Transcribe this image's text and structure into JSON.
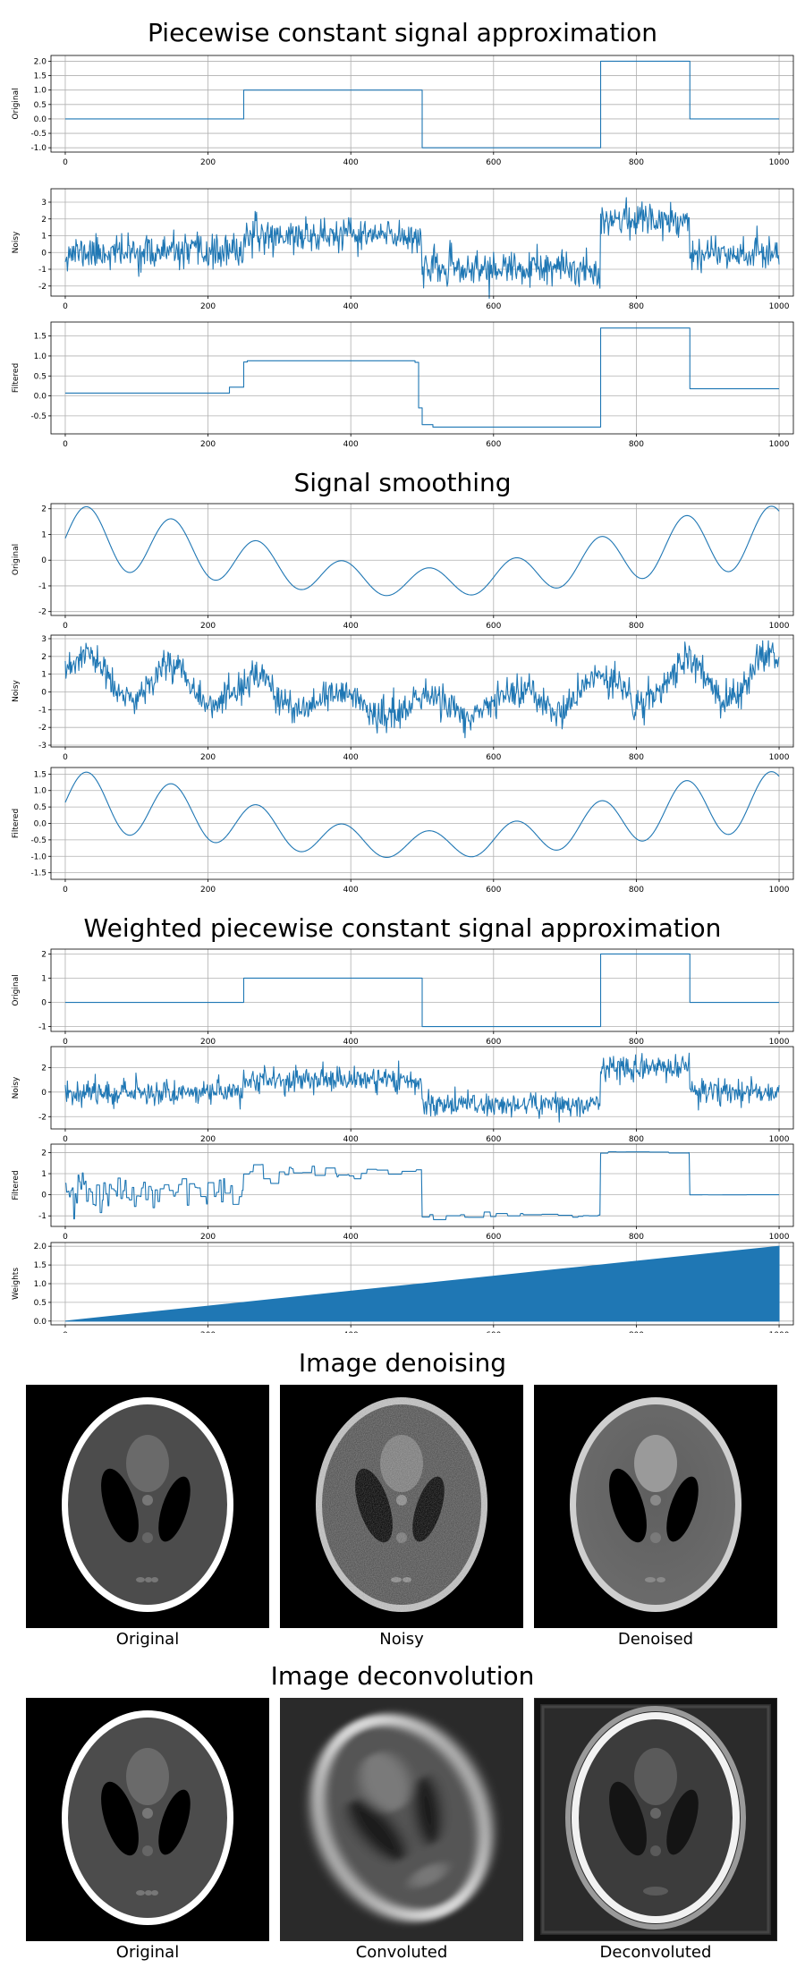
{
  "sections": {
    "pc": "Piecewise constant signal approximation",
    "smooth": "Signal smoothing",
    "wpc": "Weighted piecewise constant signal approximation",
    "denoise": "Image denoising",
    "deconv": "Image deconvolution"
  },
  "captions": {
    "denoise": [
      "Original",
      "Noisy",
      "Denoised"
    ],
    "deconv": [
      "Original",
      "Convoluted",
      "Deconvoluted"
    ]
  },
  "colors": {
    "line": "#1f77b4",
    "grid": "#b0b0b0"
  },
  "chart_data": [
    {
      "type": "line",
      "section": "pc",
      "ylabel": "Original",
      "xlim": [
        0,
        1000
      ],
      "ylim": [
        -1.15,
        2.2
      ],
      "grid": true,
      "xticks": [
        0,
        200,
        400,
        600,
        800,
        1000
      ],
      "yticks": [
        -1.0,
        -0.5,
        0.0,
        0.5,
        1.0,
        1.5,
        2.0
      ],
      "ytick_decimals": 1,
      "steps": [
        [
          0,
          0
        ],
        [
          250,
          1
        ],
        [
          500,
          -1
        ],
        [
          750,
          2
        ],
        [
          875,
          0
        ],
        [
          1000,
          0
        ]
      ]
    },
    {
      "type": "line",
      "section": "pc",
      "ylabel": "Noisy",
      "xlim": [
        0,
        1000
      ],
      "ylim": [
        -2.6,
        3.8
      ],
      "grid": true,
      "xticks": [
        0,
        200,
        400,
        600,
        800,
        1000
      ],
      "yticks": [
        -2,
        -1,
        0,
        1,
        2,
        3
      ],
      "base": "steps",
      "steps": [
        [
          0,
          0
        ],
        [
          250,
          1
        ],
        [
          500,
          -1
        ],
        [
          750,
          2
        ],
        [
          875,
          0
        ],
        [
          1000,
          0
        ]
      ],
      "noise": 0.5,
      "seed": 11
    },
    {
      "type": "line",
      "section": "pc",
      "ylabel": "Filtered",
      "xlim": [
        0,
        1000
      ],
      "ylim": [
        -0.95,
        1.85
      ],
      "grid": true,
      "xticks": [
        0,
        200,
        400,
        600,
        800,
        1000
      ],
      "yticks": [
        -0.5,
        0.0,
        0.5,
        1.0,
        1.5
      ],
      "ytick_decimals": 1,
      "steps": [
        [
          0,
          0.07
        ],
        [
          230,
          0.22
        ],
        [
          250,
          0.85
        ],
        [
          255,
          0.88
        ],
        [
          490,
          0.84
        ],
        [
          495,
          -0.3
        ],
        [
          500,
          -0.72
        ],
        [
          515,
          -0.78
        ],
        [
          750,
          1.7
        ],
        [
          870,
          1.7
        ],
        [
          875,
          0.18
        ],
        [
          1000,
          0.18
        ]
      ]
    },
    {
      "type": "line",
      "section": "smooth",
      "ylabel": "Original",
      "xlim": [
        0,
        1000
      ],
      "ylim": [
        -2.15,
        2.2
      ],
      "grid": true,
      "xticks": [
        0,
        200,
        400,
        600,
        800,
        1000
      ],
      "yticks": [
        -2,
        -1,
        0,
        1,
        2
      ],
      "base": "sine"
    },
    {
      "type": "line",
      "section": "smooth",
      "ylabel": "Noisy",
      "xlim": [
        0,
        1000
      ],
      "ylim": [
        -3.1,
        3.2
      ],
      "grid": true,
      "xticks": [
        0,
        200,
        400,
        600,
        800,
        1000
      ],
      "yticks": [
        -3,
        -2,
        -1,
        0,
        1,
        2,
        3
      ],
      "base": "sine",
      "noise": 0.45,
      "seed": 23
    },
    {
      "type": "line",
      "section": "smooth",
      "ylabel": "Filtered",
      "xlim": [
        0,
        1000
      ],
      "ylim": [
        -1.7,
        1.7
      ],
      "grid": true,
      "xticks": [
        0,
        200,
        400,
        600,
        800,
        1000
      ],
      "yticks": [
        -1.5,
        -1.0,
        -0.5,
        0.0,
        0.5,
        1.0,
        1.5
      ],
      "ytick_decimals": 1,
      "base": "sine",
      "scale": 0.75
    },
    {
      "type": "line",
      "section": "wpc",
      "ylabel": "Original",
      "xlim": [
        0,
        1000
      ],
      "ylim": [
        -1.2,
        2.2
      ],
      "grid": true,
      "xticks": [
        0,
        200,
        400,
        600,
        800,
        1000
      ],
      "yticks": [
        -1,
        0,
        1,
        2
      ],
      "steps": [
        [
          0,
          0
        ],
        [
          250,
          1
        ],
        [
          500,
          -1
        ],
        [
          750,
          2
        ],
        [
          875,
          0
        ],
        [
          1000,
          0
        ]
      ]
    },
    {
      "type": "line",
      "section": "wpc",
      "ylabel": "Noisy",
      "xlim": [
        0,
        1000
      ],
      "ylim": [
        -3.0,
        3.7
      ],
      "grid": true,
      "xticks": [
        0,
        200,
        400,
        600,
        800,
        1000
      ],
      "yticks": [
        -2,
        0,
        2
      ],
      "base": "steps",
      "steps": [
        [
          0,
          0
        ],
        [
          250,
          1
        ],
        [
          500,
          -1
        ],
        [
          750,
          2
        ],
        [
          875,
          0
        ],
        [
          1000,
          0
        ]
      ],
      "noise": 0.5,
      "seed": 37
    },
    {
      "type": "line",
      "section": "wpc",
      "ylabel": "Filtered",
      "xlim": [
        0,
        1000
      ],
      "ylim": [
        -1.5,
        2.4
      ],
      "grid": true,
      "xticks": [
        0,
        200,
        400,
        600,
        800,
        1000
      ],
      "yticks": [
        -1,
        0,
        1,
        2
      ],
      "base": "wpc",
      "seed": 53
    },
    {
      "type": "area",
      "section": "wpc",
      "ylabel": "Weights",
      "xlim": [
        0,
        1000
      ],
      "ylim": [
        -0.1,
        2.1
      ],
      "grid": true,
      "xticks": [
        0,
        200,
        400,
        600,
        800,
        1000
      ],
      "yticks": [
        0.0,
        0.5,
        1.0,
        1.5,
        2.0
      ],
      "ytick_decimals": 1,
      "x": [
        0,
        1000
      ],
      "y": [
        0,
        2
      ]
    }
  ]
}
